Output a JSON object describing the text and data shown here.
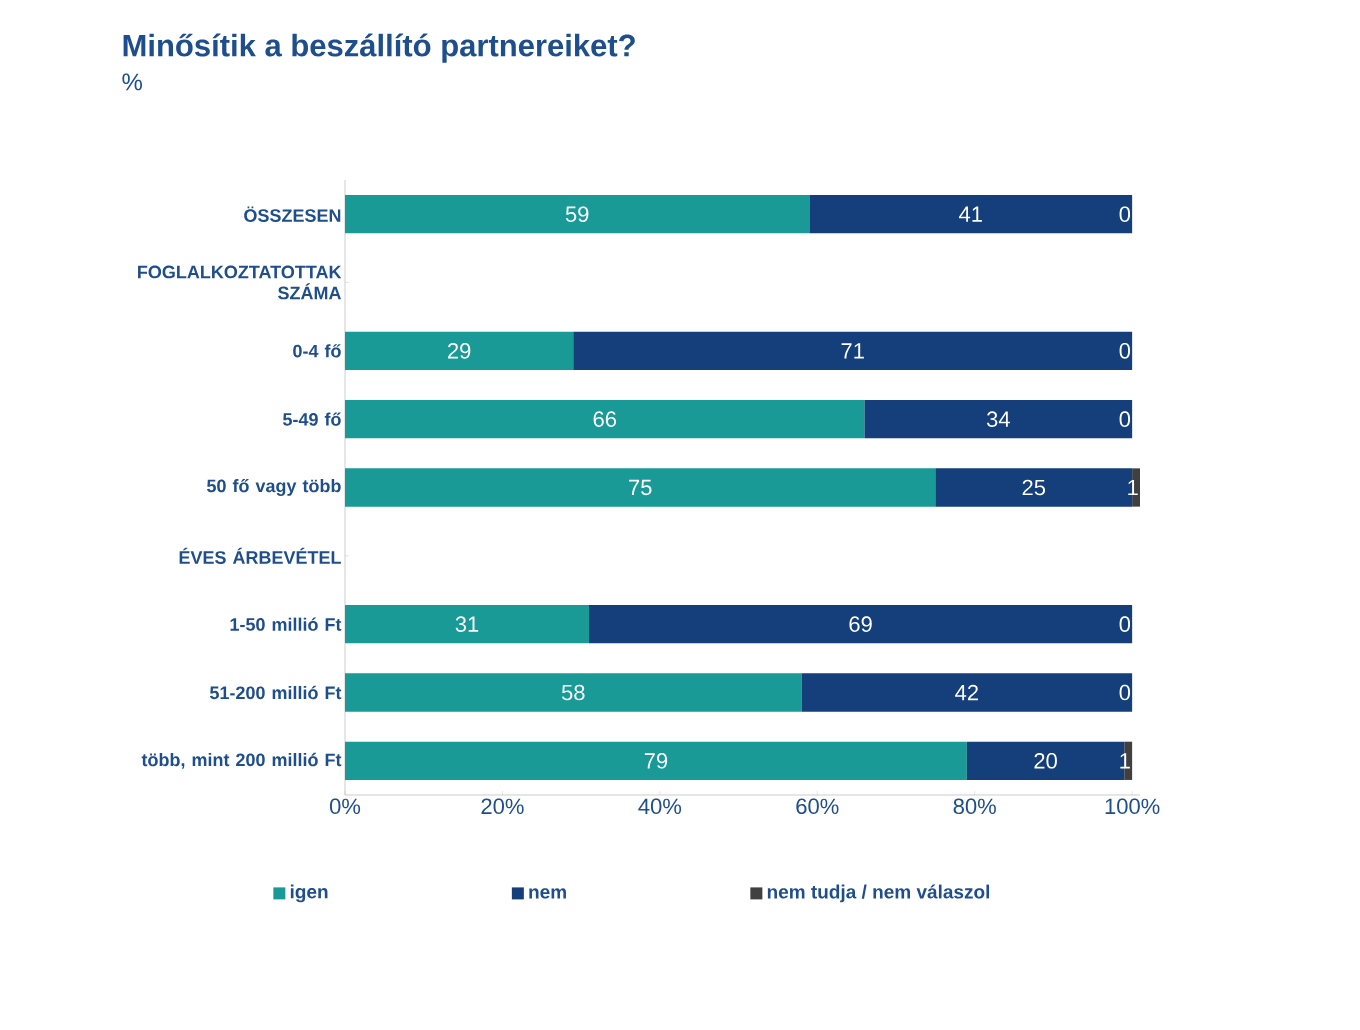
{
  "chart_data": {
    "type": "bar",
    "orientation": "horizontal",
    "stacked": true,
    "title": "Minősítik a beszállító partnereiket?",
    "subtitle": "%",
    "categories": [
      "ÖSSZESEN",
      "FOGLALKOZTATOTTAK SZÁMA",
      "0-4 fő",
      "5-49 fő",
      "50 fő vagy több",
      "ÉVES ÁRBEVÉTEL",
      "1-50 millió Ft",
      "51-200 millió Ft",
      "több, mint 200 millió Ft"
    ],
    "series": [
      {
        "name": "igen",
        "color": "#1a9a96",
        "values": [
          59,
          null,
          29,
          66,
          75,
          null,
          31,
          58,
          79
        ]
      },
      {
        "name": "nem",
        "color": "#143f7a",
        "values": [
          41,
          null,
          71,
          34,
          25,
          null,
          69,
          42,
          20
        ]
      },
      {
        "name": "nem tudja / nem válaszol",
        "color": "#404040",
        "values": [
          0,
          null,
          0,
          0,
          1,
          null,
          0,
          0,
          1
        ]
      }
    ],
    "xlim": [
      0,
      101
    ],
    "xticks": [
      {
        "value": 0,
        "label": "0%"
      },
      {
        "value": 20,
        "label": "20%"
      },
      {
        "value": 40,
        "label": "40%"
      },
      {
        "value": 60,
        "label": "60%"
      },
      {
        "value": 80,
        "label": "80%"
      },
      {
        "value": 100,
        "label": "100%"
      }
    ],
    "data_labels": true,
    "legend": "bottom",
    "grid": false
  }
}
